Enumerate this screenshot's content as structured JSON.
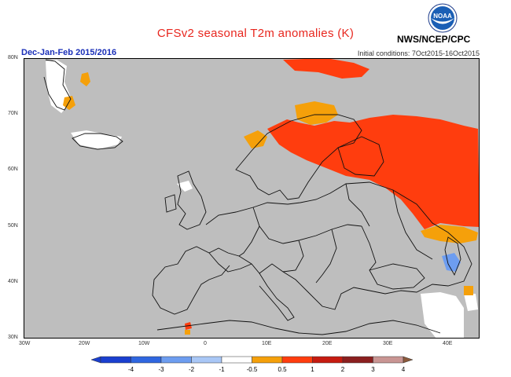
{
  "header": {
    "title": "CFSv2 seasonal T2m anomalies (K)",
    "period": "Dec-Jan-Feb 2015/2016",
    "initial_conditions": "Initial conditions: 7Oct2015-16Oct2015",
    "organization": "NWS/NCEP/CPC",
    "logo_text": "NOAA"
  },
  "map": {
    "region": "Europe",
    "lon_ticks": [
      "30W",
      "20W",
      "10W",
      "0",
      "10E",
      "20E",
      "30E",
      "40E"
    ],
    "lat_ticks": [
      "80N",
      "70N",
      "60N",
      "50N",
      "40N",
      "30N"
    ],
    "colors": {
      "background": "#bebebe",
      "land_outline": "#111111",
      "frame": "#000000"
    }
  },
  "legend": {
    "labels": [
      "-4",
      "-3",
      "-2",
      "-1",
      "-0.5",
      "0.5",
      "1",
      "2",
      "3",
      "4"
    ],
    "colors": [
      "#1a3fcf",
      "#2f66e0",
      "#6d9df0",
      "#a9c7f6",
      "#ffffff",
      "#f5a00a",
      "#ff3d0e",
      "#c61b10",
      "#8b1f1f",
      "#c99593"
    ]
  }
}
